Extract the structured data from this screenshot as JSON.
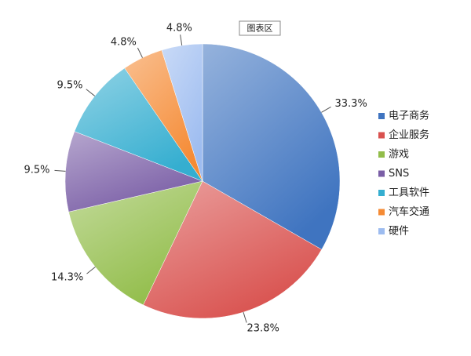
{
  "chart_data": {
    "type": "pie",
    "tooltip": "图表区",
    "categories": [
      "电子商务",
      "企业服务",
      "游戏",
      "SNS",
      "工具软件",
      "汽车交通",
      "硬件"
    ],
    "values": [
      33.3,
      23.8,
      14.3,
      9.5,
      9.5,
      4.8,
      4.8
    ],
    "value_labels": [
      "33.3%",
      "23.8%",
      "14.3%",
      "9.5%",
      "9.5%",
      "4.8%",
      "4.8%"
    ],
    "colors": [
      "#3f74c0",
      "#d9524f",
      "#92bd4a",
      "#7a5ea6",
      "#35aed0",
      "#f58b35",
      "#9dbcf0"
    ],
    "legend": "right"
  }
}
